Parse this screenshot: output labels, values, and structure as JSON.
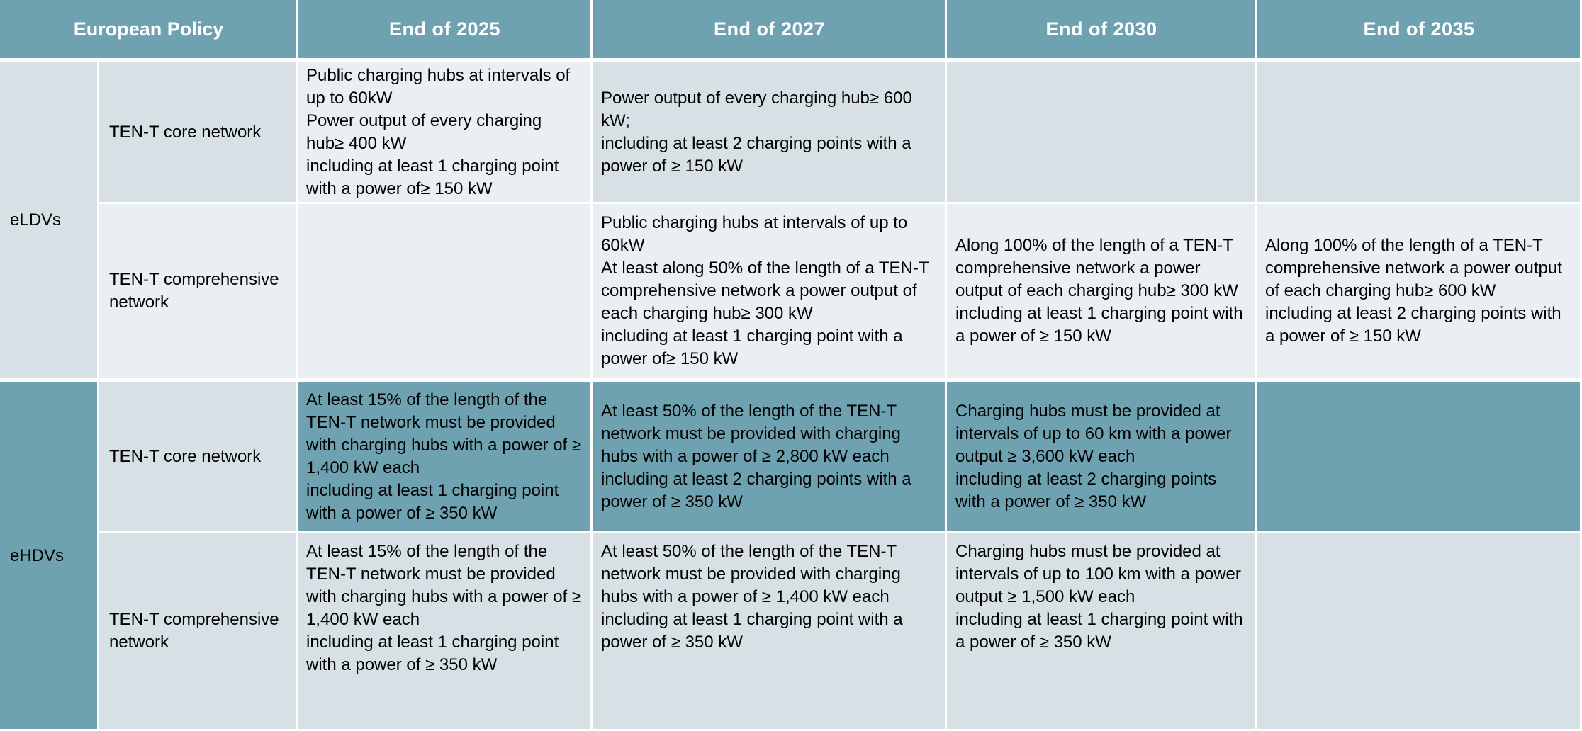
{
  "header": {
    "policy": "European Policy",
    "columns": [
      "End of 2025",
      "End of 2027",
      "End of 2030",
      "End of 2035"
    ]
  },
  "groups": [
    {
      "name": "eLDVs",
      "rows": [
        {
          "network": "TEN-T core network",
          "cells": [
            "Public  charging hubs at intervals of up to 60kW\nPower output of every charging hub≥ 400 kW\nincluding at least 1 charging point with a power of≥ 150 kW",
            "Power output of every charging hub≥ 600 kW;\nincluding at least 2 charging points with a power of ≥ 150 kW",
            "",
            ""
          ]
        },
        {
          "network": "TEN-T comprehensive network",
          "cells": [
            "",
            "Public  charging hubs at intervals of up to 60kW\nAt least along 50% of the length of a TEN-T comprehensive network a power output of each charging hub≥ 300 kW\nincluding at least 1 charging point with a power of≥ 150 kW",
            "Along 100% of the length of a TEN-T comprehensive network a power output of each charging hub≥ 300 kW\nincluding at least 1 charging point with a power of ≥ 150 kW",
            "Along 100% of the length of a TEN-T comprehensive network a power output of each charging hub≥ 600 kW\nincluding at least 2 charging points with a power of ≥ 150 kW"
          ]
        }
      ]
    },
    {
      "name": "eHDVs",
      "rows": [
        {
          "network": "TEN-T core network",
          "cells": [
            "At least 15% of the length of the TEN-T network must be provided with charging hubs with a power of ≥ 1,400 kW each\nincluding at least 1 charging point with a power of ≥ 350 kW",
            "At least 50% of the length of the TEN-T network must be provided with charging hubs with a power of ≥ 2,800 kW each\nincluding at least 2 charging points with a power of  ≥ 350 kW",
            "Charging hubs must be provided at intervals of up to 60 km with a power output ≥ 3,600 kW each\nincluding at least 2 charging points with a power of ≥ 350 kW",
            ""
          ]
        },
        {
          "network": "TEN-T comprehensive network",
          "cells": [
            "At least 15% of the length of the TEN-T network must be provided with charging hubs with a power of ≥ 1,400 kW each\nincluding at least 1 charging point with a power of ≥ 350 kW",
            "At least 50% of the length of the TEN-T network must be provided with charging hubs with a power of ≥ 1,400 kW each\nincluding at least 1 charging point with a power of ≥ 350 kW",
            "Charging hubs must be provided at intervals of up to 100 km with a power output  ≥ 1,500 kW each\nincluding at least 1 charging point with a power of  ≥ 350 kW",
            ""
          ]
        }
      ]
    }
  ],
  "colors": {
    "header_bg": "#6fa2b0",
    "light_cell": "#d6e0e5",
    "lighter_cell": "#e9eff2",
    "teal_cell": "#6fa2b0"
  }
}
